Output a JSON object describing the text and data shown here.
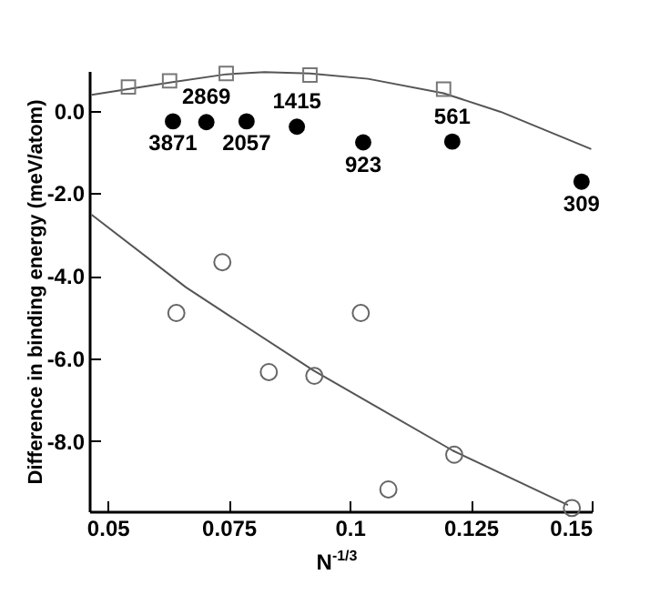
{
  "chart_data": {
    "type": "scatter",
    "xlabel": "N$^{-1/3}$",
    "ylabel": "Difference in binding energy (meV/atom)",
    "xlim": [
      0.0462,
      0.15
    ],
    "xticks": [
      0.05,
      0.075,
      0.1,
      0.125,
      0.15
    ],
    "ylim": [
      -9.7,
      0.96
    ],
    "yticks": [
      {
        "value": 0,
        "label": "0.0"
      },
      {
        "value": -2,
        "label": "-2.0"
      },
      {
        "value": -4,
        "label": "-4.0"
      },
      {
        "value": -6,
        "label": "-6.0"
      },
      {
        "value": -8,
        "label": "-8.0"
      }
    ],
    "grid": false,
    "series": [
      {
        "type": "line",
        "color": "#555555",
        "marker": "none",
        "x": [
          0.0467,
          0.0628,
          0.0745,
          0.0824,
          0.0918,
          0.1038,
          0.1194,
          0.1312,
          0.1499
        ],
        "values": [
          0.38,
          0.68,
          0.88,
          0.93,
          0.9,
          0.77,
          0.42,
          -0.03,
          -0.93
        ]
      },
      {
        "type": "line",
        "color": "#555555",
        "marker": "none",
        "x": [
          0.0467,
          0.0662,
          0.0718,
          0.0925,
          0.1063,
          0.1213,
          0.1451
        ],
        "values": [
          -2.52,
          -4.28,
          -4.71,
          -6.29,
          -7.22,
          -8.23,
          -9.55
        ]
      },
      {
        "color": "#777777",
        "marker": "square",
        "x": [
          0.0543,
          0.0628,
          0.0745,
          0.0918,
          0.1194
        ],
        "values": [
          0.57,
          0.72,
          0.9,
          0.86,
          0.52
        ]
      },
      {
        "color": "#000000",
        "marker": "circle",
        "x": [
          0.0635,
          0.0704,
          0.0787,
          0.0891,
          0.1028,
          0.1212,
          0.1479
        ],
        "values": [
          -0.26,
          -0.28,
          -0.26,
          -0.39,
          -0.77,
          -0.75,
          -1.72
        ]
      },
      {
        "color": "#666666",
        "marker": "circle",
        "x": [
          0.0737,
          0.0642,
          0.1023,
          0.0833,
          0.0927,
          0.1216,
          0.108,
          0.1459
        ],
        "values": [
          -3.67,
          -4.9,
          -4.9,
          -6.33,
          -6.42,
          -8.33,
          -9.17,
          -9.62
        ]
      }
    ],
    "annotations": [
      {
        "text": "3871",
        "x": 0.0635,
        "y": -0.26
      },
      {
        "text": "2869",
        "x": 0.0704,
        "y": -0.28
      },
      {
        "text": "2057",
        "x": 0.0787,
        "y": -0.26
      },
      {
        "text": "1415",
        "x": 0.0891,
        "y": -0.39
      },
      {
        "text": "923",
        "x": 0.1028,
        "y": -0.77
      },
      {
        "text": "561",
        "x": 0.1212,
        "y": -0.75
      },
      {
        "text": "309",
        "x": 0.1479,
        "y": -1.72
      }
    ]
  }
}
